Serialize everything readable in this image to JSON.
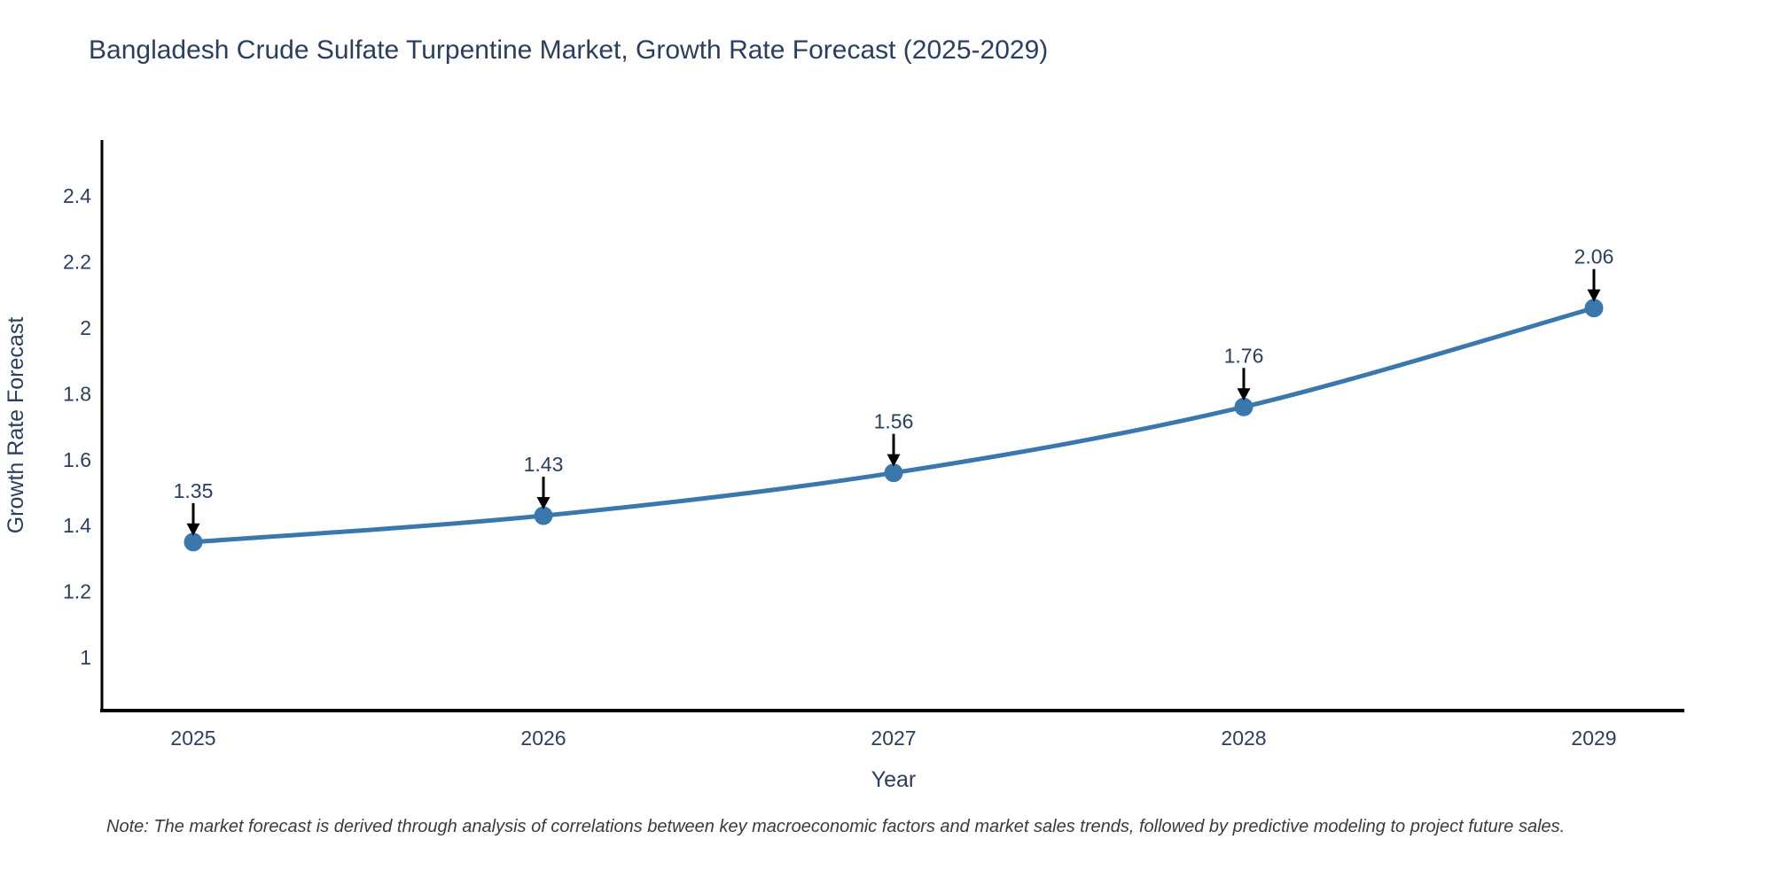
{
  "title": "Bangladesh Crude Sulfate Turpentine Market, Growth Rate Forecast (2025-2029)",
  "note": "Note: The market forecast is derived through analysis of correlations between key macroeconomic factors and market sales trends, followed by predictive modeling to project future sales.",
  "chart_data": {
    "type": "line",
    "title": "Bangladesh Crude Sulfate Turpentine Market, Growth Rate Forecast (2025-2029)",
    "xlabel": "Year",
    "ylabel": "Growth Rate Forecast",
    "x": [
      2025,
      2026,
      2027,
      2028,
      2029
    ],
    "series": [
      {
        "name": "Growth Rate Forecast",
        "values": [
          1.35,
          1.43,
          1.56,
          1.76,
          2.06
        ],
        "point_labels": [
          "1.35",
          "1.43",
          "1.56",
          "1.76",
          "2.06"
        ]
      }
    ],
    "xtick_labels": [
      "2025",
      "2026",
      "2027",
      "2028",
      "2029"
    ],
    "yticks": [
      1,
      1.2,
      1.4,
      1.6,
      1.8,
      2,
      2.2,
      2.4
    ],
    "ytick_labels": [
      "1",
      "1.2",
      "1.4",
      "1.6",
      "1.8",
      "2",
      "2.2",
      "2.4"
    ],
    "ylim": [
      0.84,
      2.57
    ],
    "xlim": [
      2024.73,
      2029.26
    ],
    "grid": false,
    "legend_position": "none",
    "line_shape": "spline",
    "annotations_have_arrows": true,
    "colors": {
      "line": "#3a77ad",
      "marker": "#3a77ad",
      "axis_line": "#000000",
      "text": "#2a3f5f",
      "annotation_arrow": "#000000",
      "note_text": "#3b3b3b",
      "background": "#ffffff"
    }
  }
}
